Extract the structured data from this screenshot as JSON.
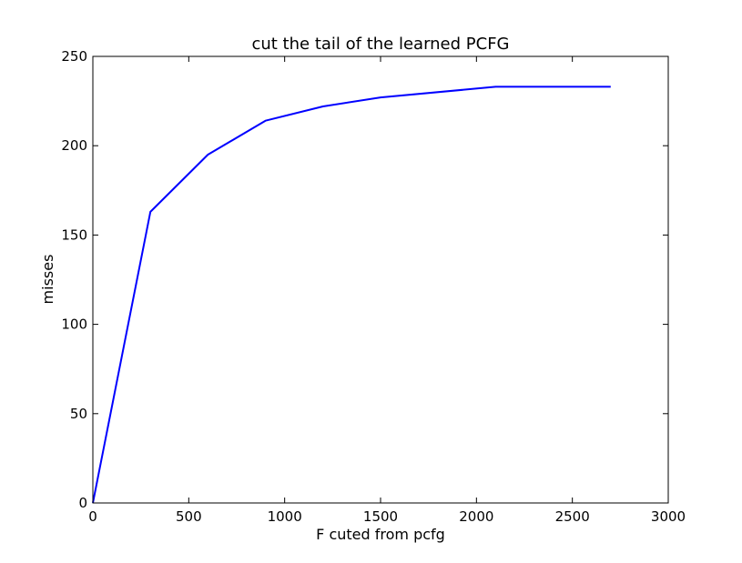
{
  "chart_data": {
    "type": "line",
    "title": "cut the tail of the learned PCFG",
    "xlabel": "F cuted from pcfg",
    "ylabel": "misses",
    "xlim": [
      0,
      3000
    ],
    "ylim": [
      0,
      250
    ],
    "xticks": [
      0,
      500,
      1000,
      1500,
      2000,
      2500,
      3000
    ],
    "yticks": [
      0,
      50,
      100,
      150,
      200,
      250
    ],
    "grid": false,
    "series": [
      {
        "color": "#0000ff",
        "x": [
          0,
          300,
          600,
          900,
          1200,
          1500,
          2100,
          2700
        ],
        "y": [
          0,
          163,
          195,
          214,
          222,
          227,
          233,
          233
        ]
      }
    ]
  }
}
